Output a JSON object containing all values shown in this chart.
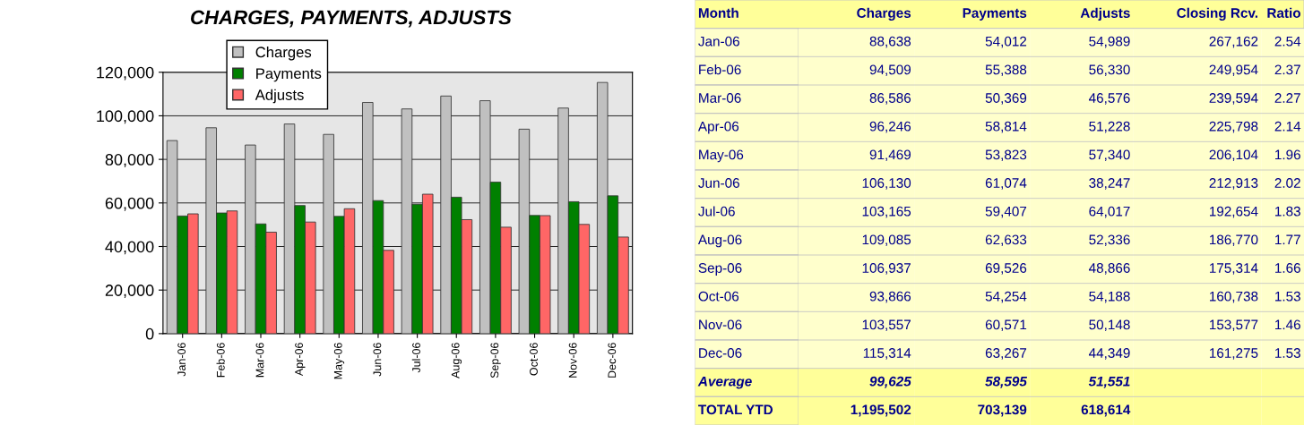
{
  "chart_data": [
    {
      "type": "bar",
      "title": "CHARGES, PAYMENTS, ADJUSTS",
      "categories": [
        "Jan-06",
        "Feb-06",
        "Mar-06",
        "Apr-06",
        "May-06",
        "Jun-06",
        "Jul-06",
        "Aug-06",
        "Sep-06",
        "Oct-06",
        "Nov-06",
        "Dec-06"
      ],
      "series": [
        {
          "name": "Charges",
          "color": "#c0c0c0",
          "values": [
            88638,
            94509,
            86586,
            96246,
            91469,
            106130,
            103165,
            109085,
            106937,
            93866,
            103557,
            115314
          ]
        },
        {
          "name": "Payments",
          "color": "#008000",
          "values": [
            54012,
            55388,
            50369,
            58814,
            53823,
            61074,
            59407,
            62633,
            69526,
            54254,
            60571,
            63267
          ]
        },
        {
          "name": "Adjusts",
          "color": "#ff6666",
          "values": [
            54989,
            56330,
            46576,
            51228,
            57340,
            38247,
            64017,
            52336,
            48866,
            54188,
            50148,
            44349
          ]
        }
      ],
      "ylim": [
        0,
        120000
      ],
      "yticks": [
        {
          "value": 0,
          "label": "0"
        },
        {
          "value": 20000,
          "label": "20,000"
        },
        {
          "value": 40000,
          "label": "40,000"
        },
        {
          "value": 60000,
          "label": "60,000"
        },
        {
          "value": 80000,
          "label": "80,000"
        },
        {
          "value": 100000,
          "label": "100,000"
        },
        {
          "value": 120000,
          "label": "120,000"
        }
      ],
      "grid": "y",
      "legend": "top"
    },
    {
      "type": "other",
      "xlabel": "Month",
      "categories": [
        "Jan-06",
        "Feb-06",
        "Mar-06",
        "Apr-06",
        "May-06",
        "Jun-06",
        "Jul-06",
        "Aug-06",
        "Sep-06",
        "Oct-06",
        "Nov-06",
        "Dec-06",
        "Average",
        "TOTAL YTD"
      ],
      "series": [
        {
          "name": "Charges",
          "colors": [
            "#ffffcc",
            "#ffffcc",
            "#ffffcc",
            "#ffffcc",
            "#ffffcc",
            "#ffffcc",
            "#ffffcc",
            "#ffffcc",
            "#ffffcc",
            "#ffffcc",
            "#ffffcc",
            "#ffffcc",
            "#ffff99",
            "#ffff99"
          ],
          "values": [
            88638,
            94509,
            86586,
            96246,
            91469,
            106130,
            103165,
            109085,
            106937,
            93866,
            103557,
            115314,
            99625,
            1195502
          ],
          "value_labels": [
            "88,638",
            "94,509",
            "86,586",
            "96,246",
            "91,469",
            "106,130",
            "103,165",
            "109,085",
            "106,937",
            "93,866",
            "103,557",
            "115,314",
            "99,625",
            "1,195,502"
          ]
        },
        {
          "name": "Payments",
          "colors": [
            "#ffffcc",
            "#ffffcc",
            "#ffffcc",
            "#ffffcc",
            "#ffffcc",
            "#ffffcc",
            "#ffffcc",
            "#ffffcc",
            "#ffffcc",
            "#ffffcc",
            "#ffffcc",
            "#ffffcc",
            "#ffff99",
            "#ffff99"
          ],
          "values": [
            54012,
            55388,
            50369,
            58814,
            53823,
            61074,
            59407,
            62633,
            69526,
            54254,
            60571,
            63267,
            58595,
            703139
          ],
          "value_labels": [
            "54,012",
            "55,388",
            "50,369",
            "58,814",
            "53,823",
            "61,074",
            "59,407",
            "62,633",
            "69,526",
            "54,254",
            "60,571",
            "63,267",
            "58,595",
            "703,139"
          ]
        },
        {
          "name": "Adjusts",
          "colors": [
            "#ffffcc",
            "#ffffcc",
            "#ffffcc",
            "#ffffcc",
            "#ffffcc",
            "#ffffcc",
            "#ffffcc",
            "#ffffcc",
            "#ffffcc",
            "#ffffcc",
            "#ffffcc",
            "#ffffcc",
            "#ffff99",
            "#ffff99"
          ],
          "values": [
            54989,
            56330,
            46576,
            51228,
            57340,
            38247,
            64017,
            52336,
            48866,
            54188,
            50148,
            44349,
            51551,
            618614
          ],
          "value_labels": [
            "54,989",
            "56,330",
            "46,576",
            "51,228",
            "57,340",
            "38,247",
            "64,017",
            "52,336",
            "48,866",
            "54,188",
            "50,148",
            "44,349",
            "51,551",
            "618,614"
          ]
        },
        {
          "name": "Closing Rcv.",
          "colors": [
            "#ffffcc",
            "#ffffcc",
            "#ffffcc",
            "#ffffcc",
            "#ffffcc",
            "#ffffcc",
            "#ffffcc",
            "#ffffcc",
            "#ffffcc",
            "#ffffcc",
            "#ffffcc",
            "#ffffcc",
            "#ffff99",
            "#ffff99"
          ],
          "values": [
            267162,
            249954,
            239594,
            225798,
            206104,
            212913,
            192654,
            186770,
            175314,
            160738,
            153577,
            161275,
            null,
            null
          ],
          "value_labels": [
            "267,162",
            "249,954",
            "239,594",
            "225,798",
            "206,104",
            "212,913",
            "192,654",
            "186,770",
            "175,314",
            "160,738",
            "153,577",
            "161,275",
            null,
            null
          ]
        },
        {
          "name": "Ratio",
          "colors": [
            "#ffffcc",
            "#ffffcc",
            "#ffffcc",
            "#ffffcc",
            "#ffffcc",
            "#ffffcc",
            "#ffffcc",
            "#ffffcc",
            "#ffffcc",
            "#ffffcc",
            "#ffffcc",
            "#ffffcc",
            "#ffff99",
            "#ffff99"
          ],
          "values": [
            2.54,
            2.37,
            2.27,
            2.14,
            1.96,
            2.02,
            1.83,
            1.77,
            1.66,
            1.53,
            1.46,
            1.53,
            null,
            null
          ],
          "value_labels": [
            "2.54",
            "2.37",
            "2.27",
            "2.14",
            "1.96",
            "2.02",
            "1.83",
            "1.77",
            "1.66",
            "1.53",
            "1.46",
            "1.53",
            null,
            null
          ]
        }
      ]
    }
  ]
}
